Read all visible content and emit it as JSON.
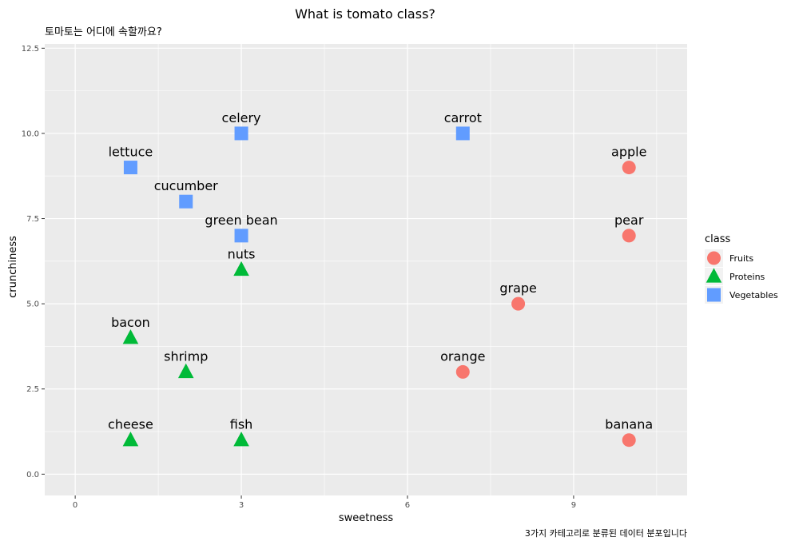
{
  "chart_data": {
    "type": "scatter",
    "title": "What is tomato class?",
    "subtitle": "토마토는 어디에 속할까요?",
    "caption": "3가지 카테고리로 분류된 데이터 분포입니다",
    "xlabel": "sweetness",
    "ylabel": "crunchiness",
    "xlim": [
      -0.55,
      11.05
    ],
    "ylim": [
      -0.625,
      12.625
    ],
    "x_ticks": [
      "0",
      "3",
      "6",
      "9"
    ],
    "y_ticks": [
      "0.0",
      "2.5",
      "5.0",
      "7.5",
      "10.0",
      "12.5"
    ],
    "grid": true,
    "legend": {
      "title": "class",
      "position": "right",
      "entries": [
        "Fruits",
        "Proteins",
        "Vegetables"
      ]
    },
    "series": [
      {
        "name": "Fruits",
        "shape": "circle",
        "color": "#F8766D",
        "points": [
          {
            "label": "apple",
            "x": 10,
            "y": 9
          },
          {
            "label": "pear",
            "x": 10,
            "y": 7
          },
          {
            "label": "grape",
            "x": 8,
            "y": 5
          },
          {
            "label": "orange",
            "x": 7,
            "y": 3
          },
          {
            "label": "banana",
            "x": 10,
            "y": 1
          }
        ]
      },
      {
        "name": "Proteins",
        "shape": "triangle",
        "color": "#00BA38",
        "points": [
          {
            "label": "nuts",
            "x": 3,
            "y": 6
          },
          {
            "label": "bacon",
            "x": 1,
            "y": 4
          },
          {
            "label": "shrimp",
            "x": 2,
            "y": 3
          },
          {
            "label": "cheese",
            "x": 1,
            "y": 1
          },
          {
            "label": "fish",
            "x": 3,
            "y": 1
          }
        ]
      },
      {
        "name": "Vegetables",
        "shape": "square",
        "color": "#619CFF",
        "points": [
          {
            "label": "celery",
            "x": 3,
            "y": 10
          },
          {
            "label": "carrot",
            "x": 7,
            "y": 10
          },
          {
            "label": "lettuce",
            "x": 1,
            "y": 9
          },
          {
            "label": "cucumber",
            "x": 2,
            "y": 8
          },
          {
            "label": "green bean",
            "x": 3,
            "y": 7
          }
        ]
      }
    ]
  }
}
